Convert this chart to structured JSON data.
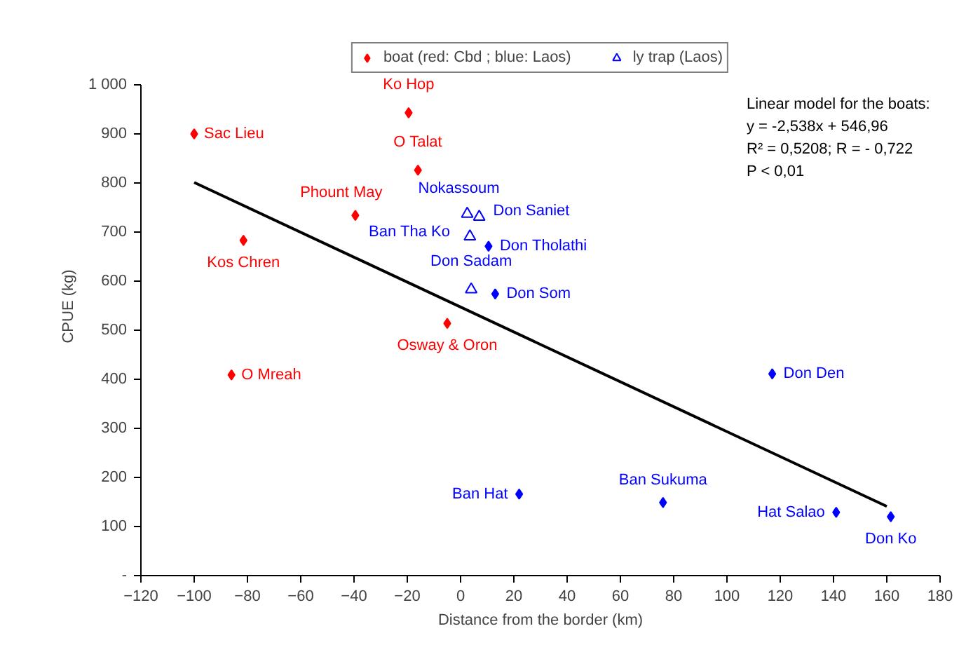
{
  "chart_data": {
    "type": "scatter",
    "xlabel": "Distance from the border (km)",
    "ylabel": "CPUE (kg)",
    "xlim": [
      -120,
      180
    ],
    "xticks": [
      -120,
      -100,
      -80,
      -60,
      -40,
      -20,
      0,
      20,
      40,
      60,
      80,
      100,
      120,
      140,
      160,
      180
    ],
    "ylim": [
      0,
      1000
    ],
    "yticks": [
      {
        "value": 0,
        "label": "-"
      },
      100,
      200,
      300,
      400,
      500,
      600,
      700,
      800,
      900,
      {
        "value": 1000,
        "label": "1 000"
      }
    ],
    "grid": false,
    "legend": "top",
    "series": [
      {
        "name": "boat (red: Cbd ; blue: Laos)",
        "marker": "diamond",
        "x": [
          -19.5,
          -100,
          -16,
          -39.5,
          -81.5,
          -5,
          -86,
          10.5,
          13,
          117,
          22,
          76,
          141,
          161.5
        ],
        "values": [
          943,
          900,
          826,
          734,
          683,
          514,
          409,
          671,
          574,
          411,
          166,
          149,
          129,
          120
        ],
        "colors": [
          "#ff0000",
          "#ff0000",
          "#ff0000",
          "#ff0000",
          "#ff0000",
          "#ff0000",
          "#ff0000",
          "#0000ff",
          "#0000ff",
          "#0000ff",
          "#0000ff",
          "#0000ff",
          "#0000ff",
          "#0000ff"
        ]
      },
      {
        "name": "ly trap (Laos)",
        "marker": "triangle",
        "color": "#0000ff",
        "x": [
          2.5,
          7,
          3.5,
          4
        ],
        "values": [
          737,
          731,
          691,
          583
        ]
      },
      {
        "type": "line",
        "color": "#000000",
        "x": [
          -100,
          160
        ],
        "values": [
          801,
          141
        ]
      }
    ],
    "annotations": [
      "Linear model for the boats:",
      "y = -2,538x + 546,96",
      "R² = 0,5208; R = - 0,722",
      "P < 0,01",
      {
        "text": "Ko Hop",
        "x": -19.5,
        "y": 943
      },
      {
        "text": "Sac Lieu",
        "x": -100,
        "y": 900
      },
      {
        "text": "O Talat",
        "x": -16,
        "y": 826
      },
      {
        "text": "Phount May",
        "x": -39.5,
        "y": 734
      },
      {
        "text": "Kos Chren",
        "x": -81.5,
        "y": 683
      },
      {
        "text": "Osway & Oron",
        "x": -5,
        "y": 514
      },
      {
        "text": "O Mreah",
        "x": -86,
        "y": 409
      },
      {
        "text": "Nokassoum",
        "x": 2.5,
        "y": 737
      },
      {
        "text": "Don Saniet",
        "x": 7,
        "y": 731
      },
      {
        "text": "Ban Tha Ko",
        "x": 3.5,
        "y": 691
      },
      {
        "text": "Don Tholathi",
        "x": 10.5,
        "y": 671
      },
      {
        "text": "Don Sadam",
        "x": 4,
        "y": 583
      },
      {
        "text": "Don Som",
        "x": 13,
        "y": 574
      },
      {
        "text": "Don Den",
        "x": 117,
        "y": 411
      },
      {
        "text": "Ban Hat",
        "x": 22,
        "y": 166
      },
      {
        "text": "Ban Sukuma",
        "x": 76,
        "y": 149
      },
      {
        "text": "Hat Salao",
        "x": 141,
        "y": 129
      },
      {
        "text": "Don Ko",
        "x": 161.5,
        "y": 120
      }
    ]
  }
}
